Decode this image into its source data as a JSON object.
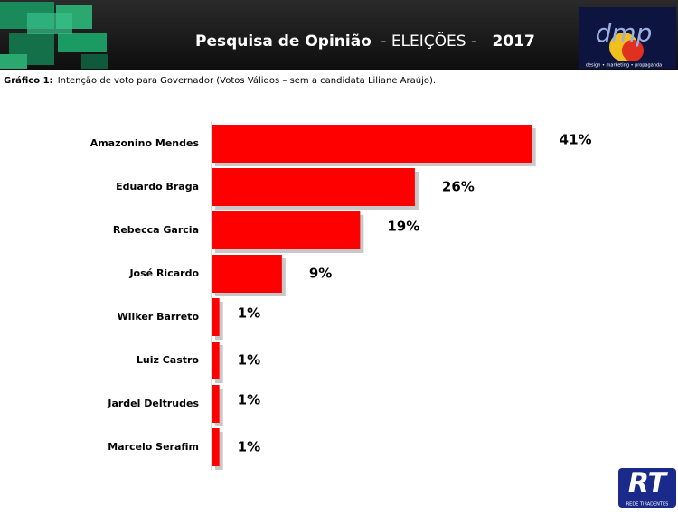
{
  "header": {
    "title": "Pesquisa de Opinião",
    "subtitle": "- ELEIÇÕES -",
    "year": "2017",
    "logo": "dmp",
    "logo_tagline": "design • marketing • propaganda"
  },
  "caption": {
    "label": "Gráfico 1:",
    "text": "Intenção de voto para Governador (Votos Válidos – sem a candidata Liliane Araújo)."
  },
  "chart_data": {
    "type": "bar",
    "orientation": "horizontal",
    "categories": [
      "Amazonino Mendes",
      "Eduardo Braga",
      "Rebecca Garcia",
      "José Ricardo",
      "Wilker Barreto",
      "Luiz Castro",
      "Jardel Deltrudes",
      "Marcelo Serafim"
    ],
    "values": [
      41,
      26,
      19,
      9,
      1,
      1,
      1,
      1
    ],
    "value_labels": [
      "41%",
      "26%",
      "19%",
      "9%",
      "1%",
      "1%",
      "1%",
      "1%"
    ],
    "color": "#ff0000"
  },
  "footer": {
    "logo": "RT",
    "logo_tagline": "REDE TIRADENTES"
  }
}
